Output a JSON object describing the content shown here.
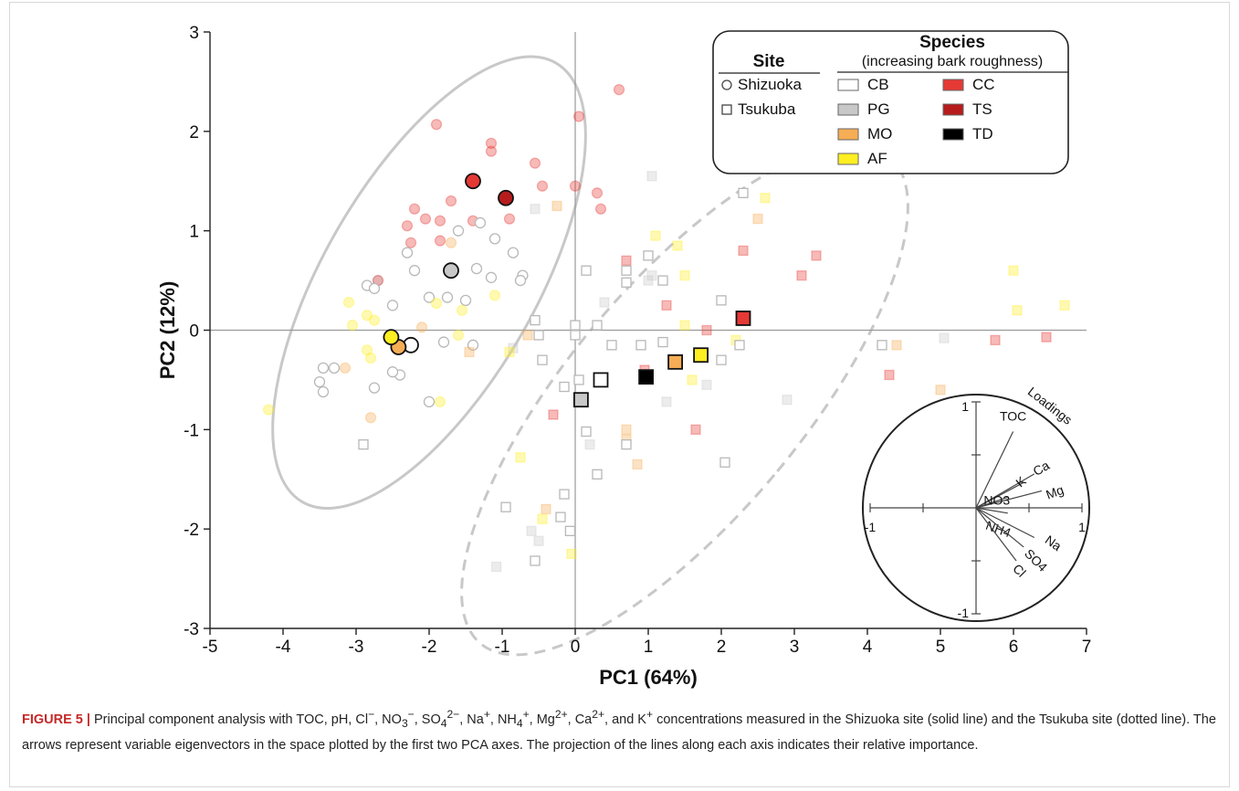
{
  "figure_label": "FIGURE 5 |",
  "caption_html": "Principal component analysis with TOC, pH, Cl<sup>−</sup>, NO<sub>3</sub><sup>−</sup>, SO<sub>4</sub><sup>2−</sup>, Na<sup>+</sup>, NH<sub>4</sub><sup>+</sup>, Mg<sup>2+</sup>, Ca<sup>2+</sup>, and K<sup>+</sup> concentrations measured in the Shizuoka site (solid line) and the Tsukuba site (dotted line). The arrows represent variable eigenvectors in the space plotted by the first two PCA axes. The projection of the lines along each axis indicates their relative importance.",
  "chart_data": {
    "type": "scatter",
    "title": "",
    "xlabel": "PC1 (64%)",
    "ylabel": "PC2 (12%)",
    "xlim": [
      -5,
      7
    ],
    "ylim": [
      -3,
      3
    ],
    "xticks": [
      -5,
      -4,
      -3,
      -2,
      -1,
      0,
      1,
      2,
      3,
      4,
      5,
      6,
      7
    ],
    "yticks": [
      -3,
      -2,
      -1,
      0,
      1,
      2,
      3
    ],
    "zero_lines": true,
    "colors": {
      "CB": "#ffffff",
      "PG": "#c8c8c8",
      "MO": "#f6ad55",
      "AF": "#ffee22",
      "CC": "#e53935",
      "TS": "#b71c1c",
      "TD": "#000000"
    },
    "legend": {
      "site_title": "Site",
      "sites": [
        {
          "label": "Shizuoka",
          "marker": "circle"
        },
        {
          "label": "Tsukuba",
          "marker": "square"
        }
      ],
      "species_title": "Species",
      "species_subtitle": "(increasing bark roughness)",
      "species": [
        {
          "label": "CB",
          "color_key": "CB"
        },
        {
          "label": "PG",
          "color_key": "PG"
        },
        {
          "label": "MO",
          "color_key": "MO"
        },
        {
          "label": "AF",
          "color_key": "AF"
        },
        {
          "label": "CC",
          "color_key": "CC"
        },
        {
          "label": "TS",
          "color_key": "TS"
        },
        {
          "label": "TD",
          "color_key": "TD"
        }
      ]
    },
    "ellipses": [
      {
        "site": "Shizuoka",
        "style": "solid",
        "center": [
          -2.0,
          0.48
        ],
        "rx": 1.45,
        "ry": 2.55,
        "angle_deg": 30
      },
      {
        "site": "Tsukuba",
        "style": "dashed",
        "center": [
          1.5,
          -0.7
        ],
        "rx": 1.6,
        "ry": 3.2,
        "angle_deg": 40
      }
    ],
    "centroids": [
      {
        "site": "Shizuoka",
        "species": "TS",
        "x": -0.95,
        "y": 1.33
      },
      {
        "site": "Shizuoka",
        "species": "CC",
        "x": -1.4,
        "y": 1.5
      },
      {
        "site": "Shizuoka",
        "species": "PG",
        "x": -1.7,
        "y": 0.6
      },
      {
        "site": "Shizuoka",
        "species": "CB",
        "x": -2.25,
        "y": -0.15
      },
      {
        "site": "Shizuoka",
        "species": "MO",
        "x": -2.42,
        "y": -0.17
      },
      {
        "site": "Shizuoka",
        "species": "AF",
        "x": -2.52,
        "y": -0.07
      },
      {
        "site": "Tsukuba",
        "species": "PG",
        "x": 0.08,
        "y": -0.7
      },
      {
        "site": "Tsukuba",
        "species": "CB",
        "x": 0.35,
        "y": -0.5
      },
      {
        "site": "Tsukuba",
        "species": "TD",
        "x": 0.97,
        "y": -0.47
      },
      {
        "site": "Tsukuba",
        "species": "MO",
        "x": 1.37,
        "y": -0.32
      },
      {
        "site": "Tsukuba",
        "species": "AF",
        "x": 1.72,
        "y": -0.25
      },
      {
        "site": "Tsukuba",
        "species": "CC",
        "x": 2.3,
        "y": 0.12
      }
    ],
    "samples": [
      {
        "site": "Shizuoka",
        "species": "CC",
        "x": -1.9,
        "y": 2.07
      },
      {
        "site": "Shizuoka",
        "species": "CC",
        "x": -1.15,
        "y": 1.88
      },
      {
        "site": "Shizuoka",
        "species": "CC",
        "x": -1.15,
        "y": 1.8
      },
      {
        "site": "Shizuoka",
        "species": "CC",
        "x": -0.55,
        "y": 1.68
      },
      {
        "site": "Shizuoka",
        "species": "CC",
        "x": -0.45,
        "y": 1.45
      },
      {
        "site": "Shizuoka",
        "species": "CC",
        "x": 0.05,
        "y": 2.15
      },
      {
        "site": "Shizuoka",
        "species": "CC",
        "x": 0.6,
        "y": 2.42
      },
      {
        "site": "Shizuoka",
        "species": "CC",
        "x": 0.0,
        "y": 1.45
      },
      {
        "site": "Shizuoka",
        "species": "CC",
        "x": 0.3,
        "y": 1.38
      },
      {
        "site": "Shizuoka",
        "species": "CC",
        "x": 0.35,
        "y": 1.22
      },
      {
        "site": "Shizuoka",
        "species": "CC",
        "x": -1.7,
        "y": 1.3
      },
      {
        "site": "Shizuoka",
        "species": "CC",
        "x": -2.2,
        "y": 1.22
      },
      {
        "site": "Shizuoka",
        "species": "CC",
        "x": -2.05,
        "y": 1.12
      },
      {
        "site": "Shizuoka",
        "species": "CC",
        "x": -1.85,
        "y": 1.1
      },
      {
        "site": "Shizuoka",
        "species": "CC",
        "x": -2.3,
        "y": 1.05
      },
      {
        "site": "Shizuoka",
        "species": "CC",
        "x": -1.4,
        "y": 1.1
      },
      {
        "site": "Shizuoka",
        "species": "CC",
        "x": -0.9,
        "y": 1.12
      },
      {
        "site": "Shizuoka",
        "species": "TS",
        "x": -2.7,
        "y": 0.5
      },
      {
        "site": "Shizuoka",
        "species": "CC",
        "x": -1.85,
        "y": 0.9
      },
      {
        "site": "Shizuoka",
        "species": "CC",
        "x": -2.25,
        "y": 0.88
      },
      {
        "site": "Shizuoka",
        "species": "CB",
        "x": -1.3,
        "y": 1.08
      },
      {
        "site": "Shizuoka",
        "species": "CB",
        "x": -1.6,
        "y": 1.0
      },
      {
        "site": "Shizuoka",
        "species": "CB",
        "x": -1.1,
        "y": 0.92
      },
      {
        "site": "Shizuoka",
        "species": "CB",
        "x": -0.85,
        "y": 0.78
      },
      {
        "site": "Shizuoka",
        "species": "CB",
        "x": -2.3,
        "y": 0.78
      },
      {
        "site": "Shizuoka",
        "species": "MO",
        "x": -1.7,
        "y": 0.88
      },
      {
        "site": "Shizuoka",
        "species": "CB",
        "x": -2.85,
        "y": 0.45
      },
      {
        "site": "Shizuoka",
        "species": "CB",
        "x": -2.75,
        "y": 0.42
      },
      {
        "site": "Shizuoka",
        "species": "CB",
        "x": -2.2,
        "y": 0.6
      },
      {
        "site": "Shizuoka",
        "species": "CB",
        "x": -1.35,
        "y": 0.62
      },
      {
        "site": "Shizuoka",
        "species": "CB",
        "x": -1.15,
        "y": 0.53
      },
      {
        "site": "Shizuoka",
        "species": "CB",
        "x": -0.72,
        "y": 0.55
      },
      {
        "site": "Shizuoka",
        "species": "CB",
        "x": -0.75,
        "y": 0.5
      },
      {
        "site": "Shizuoka",
        "species": "CB",
        "x": -2.0,
        "y": 0.33
      },
      {
        "site": "Shizuoka",
        "species": "CB",
        "x": -1.75,
        "y": 0.33
      },
      {
        "site": "Shizuoka",
        "species": "CB",
        "x": -1.5,
        "y": 0.3
      },
      {
        "site": "Shizuoka",
        "species": "CB",
        "x": -2.5,
        "y": 0.25
      },
      {
        "site": "Shizuoka",
        "species": "AF",
        "x": -1.9,
        "y": 0.27
      },
      {
        "site": "Shizuoka",
        "species": "AF",
        "x": -1.1,
        "y": 0.35
      },
      {
        "site": "Shizuoka",
        "species": "AF",
        "x": -3.1,
        "y": 0.28
      },
      {
        "site": "Shizuoka",
        "species": "AF",
        "x": -1.55,
        "y": 0.2
      },
      {
        "site": "Shizuoka",
        "species": "AF",
        "x": -2.85,
        "y": 0.15
      },
      {
        "site": "Shizuoka",
        "species": "AF",
        "x": -2.75,
        "y": 0.1
      },
      {
        "site": "Shizuoka",
        "species": "AF",
        "x": -3.05,
        "y": 0.05
      },
      {
        "site": "Shizuoka",
        "species": "MO",
        "x": -2.1,
        "y": 0.03
      },
      {
        "site": "Shizuoka",
        "species": "AF",
        "x": -1.6,
        "y": -0.05
      },
      {
        "site": "Shizuoka",
        "species": "CB",
        "x": -1.8,
        "y": -0.12
      },
      {
        "site": "Shizuoka",
        "species": "CB",
        "x": -1.4,
        "y": -0.15
      },
      {
        "site": "Shizuoka",
        "species": "AF",
        "x": -2.85,
        "y": -0.2
      },
      {
        "site": "Shizuoka",
        "species": "AF",
        "x": -2.8,
        "y": -0.28
      },
      {
        "site": "Shizuoka",
        "species": "CB",
        "x": -3.3,
        "y": -0.38
      },
      {
        "site": "Shizuoka",
        "species": "CB",
        "x": -3.45,
        "y": -0.38
      },
      {
        "site": "Shizuoka",
        "species": "MO",
        "x": -3.15,
        "y": -0.38
      },
      {
        "site": "Shizuoka",
        "species": "CB",
        "x": -2.4,
        "y": -0.45
      },
      {
        "site": "Shizuoka",
        "species": "CB",
        "x": -2.5,
        "y": -0.42
      },
      {
        "site": "Shizuoka",
        "species": "CB",
        "x": -3.5,
        "y": -0.52
      },
      {
        "site": "Shizuoka",
        "species": "CB",
        "x": -3.45,
        "y": -0.62
      },
      {
        "site": "Shizuoka",
        "species": "CB",
        "x": -2.75,
        "y": -0.58
      },
      {
        "site": "Shizuoka",
        "species": "CB",
        "x": -2.0,
        "y": -0.72
      },
      {
        "site": "Shizuoka",
        "species": "AF",
        "x": -1.85,
        "y": -0.72
      },
      {
        "site": "Shizuoka",
        "species": "MO",
        "x": -2.8,
        "y": -0.88
      },
      {
        "site": "Shizuoka",
        "species": "AF",
        "x": -4.2,
        "y": -0.8
      },
      {
        "site": "Tsukuba",
        "species": "PG",
        "x": 1.05,
        "y": 1.55
      },
      {
        "site": "Tsukuba",
        "species": "CB",
        "x": 2.3,
        "y": 1.38
      },
      {
        "site": "Tsukuba",
        "species": "AF",
        "x": 2.6,
        "y": 1.33
      },
      {
        "site": "Tsukuba",
        "species": "MO",
        "x": -0.25,
        "y": 1.25
      },
      {
        "site": "Tsukuba",
        "species": "PG",
        "x": -0.55,
        "y": 1.22
      },
      {
        "site": "Tsukuba",
        "species": "MO",
        "x": 2.5,
        "y": 1.12
      },
      {
        "site": "Tsukuba",
        "species": "AF",
        "x": 1.1,
        "y": 0.95
      },
      {
        "site": "Tsukuba",
        "species": "AF",
        "x": 1.4,
        "y": 0.85
      },
      {
        "site": "Tsukuba",
        "species": "CC",
        "x": 2.3,
        "y": 0.8
      },
      {
        "site": "Tsukuba",
        "species": "CB",
        "x": 1.0,
        "y": 0.75
      },
      {
        "site": "Tsukuba",
        "species": "CC",
        "x": 3.3,
        "y": 0.75
      },
      {
        "site": "Tsukuba",
        "species": "CC",
        "x": 0.7,
        "y": 0.7
      },
      {
        "site": "Tsukuba",
        "species": "CB",
        "x": 0.7,
        "y": 0.6
      },
      {
        "site": "Tsukuba",
        "species": "CB",
        "x": 0.15,
        "y": 0.6
      },
      {
        "site": "Tsukuba",
        "species": "AF",
        "x": 1.5,
        "y": 0.55
      },
      {
        "site": "Tsukuba",
        "species": "PG",
        "x": 1.05,
        "y": 0.55
      },
      {
        "site": "Tsukuba",
        "species": "PG",
        "x": 1.0,
        "y": 0.5
      },
      {
        "site": "Tsukuba",
        "species": "CC",
        "x": 3.1,
        "y": 0.55
      },
      {
        "site": "Tsukuba",
        "species": "CB",
        "x": 1.2,
        "y": 0.5
      },
      {
        "site": "Tsukuba",
        "species": "CB",
        "x": 0.7,
        "y": 0.48
      },
      {
        "site": "Tsukuba",
        "species": "AF",
        "x": 6.0,
        "y": 0.6
      },
      {
        "site": "Tsukuba",
        "species": "AF",
        "x": 6.7,
        "y": 0.25
      },
      {
        "site": "Tsukuba",
        "species": "AF",
        "x": 6.05,
        "y": 0.2
      },
      {
        "site": "Tsukuba",
        "species": "CB",
        "x": 2.0,
        "y": 0.3
      },
      {
        "site": "Tsukuba",
        "species": "PG",
        "x": 0.4,
        "y": 0.28
      },
      {
        "site": "Tsukuba",
        "species": "CC",
        "x": 1.25,
        "y": 0.25
      },
      {
        "site": "Tsukuba",
        "species": "CB",
        "x": -0.55,
        "y": 0.1
      },
      {
        "site": "Tsukuba",
        "species": "AF",
        "x": 1.5,
        "y": 0.05
      },
      {
        "site": "Tsukuba",
        "species": "CB",
        "x": 0.0,
        "y": 0.05
      },
      {
        "site": "Tsukuba",
        "species": "CB",
        "x": 0.3,
        "y": 0.05
      },
      {
        "site": "Tsukuba",
        "species": "CC",
        "x": 1.8,
        "y": 0.0
      },
      {
        "site": "Tsukuba",
        "species": "CB",
        "x": 0.0,
        "y": -0.05
      },
      {
        "site": "Tsukuba",
        "species": "CB",
        "x": -0.5,
        "y": -0.05
      },
      {
        "site": "Tsukuba",
        "species": "MO",
        "x": -0.65,
        "y": -0.05
      },
      {
        "site": "Tsukuba",
        "species": "AF",
        "x": 2.2,
        "y": -0.1
      },
      {
        "site": "Tsukuba",
        "species": "CB",
        "x": 2.25,
        "y": -0.15
      },
      {
        "site": "Tsukuba",
        "species": "CB",
        "x": 0.9,
        "y": -0.15
      },
      {
        "site": "Tsukuba",
        "species": "CB",
        "x": 0.5,
        "y": -0.15
      },
      {
        "site": "Tsukuba",
        "species": "CB",
        "x": 1.2,
        "y": -0.12
      },
      {
        "site": "Tsukuba",
        "species": "CB",
        "x": 4.2,
        "y": -0.15
      },
      {
        "site": "Tsukuba",
        "species": "MO",
        "x": 4.4,
        "y": -0.15
      },
      {
        "site": "Tsukuba",
        "species": "PG",
        "x": 5.05,
        "y": -0.08
      },
      {
        "site": "Tsukuba",
        "species": "CC",
        "x": 5.75,
        "y": -0.1
      },
      {
        "site": "Tsukuba",
        "species": "CC",
        "x": 6.45,
        "y": -0.07
      },
      {
        "site": "Tsukuba",
        "species": "PG",
        "x": -0.85,
        "y": -0.18
      },
      {
        "site": "Tsukuba",
        "species": "AF",
        "x": -0.9,
        "y": -0.22
      },
      {
        "site": "Tsukuba",
        "species": "MO",
        "x": -1.45,
        "y": -0.22
      },
      {
        "site": "Tsukuba",
        "species": "CB",
        "x": -0.45,
        "y": -0.3
      },
      {
        "site": "Tsukuba",
        "species": "CB",
        "x": 2.0,
        "y": -0.3
      },
      {
        "site": "Tsukuba",
        "species": "CC",
        "x": 0.95,
        "y": -0.4
      },
      {
        "site": "Tsukuba",
        "species": "CB",
        "x": 0.05,
        "y": -0.5
      },
      {
        "site": "Tsukuba",
        "species": "AF",
        "x": 1.6,
        "y": -0.5
      },
      {
        "site": "Tsukuba",
        "species": "PG",
        "x": 1.8,
        "y": -0.55
      },
      {
        "site": "Tsukuba",
        "species": "CB",
        "x": -0.15,
        "y": -0.57
      },
      {
        "site": "Tsukuba",
        "species": "MO",
        "x": 5.0,
        "y": -0.6
      },
      {
        "site": "Tsukuba",
        "species": "PG",
        "x": 2.9,
        "y": -0.7
      },
      {
        "site": "Tsukuba",
        "species": "PG",
        "x": 1.25,
        "y": -0.72
      },
      {
        "site": "Tsukuba",
        "species": "CC",
        "x": -0.3,
        "y": -0.85
      },
      {
        "site": "Tsukuba",
        "species": "CC",
        "x": 4.3,
        "y": -0.45
      },
      {
        "site": "Tsukuba",
        "species": "CB",
        "x": 0.15,
        "y": -1.02
      },
      {
        "site": "Tsukuba",
        "species": "MO",
        "x": 0.7,
        "y": -1.0
      },
      {
        "site": "Tsukuba",
        "species": "CC",
        "x": 1.65,
        "y": -1.0
      },
      {
        "site": "Tsukuba",
        "species": "MO",
        "x": 0.7,
        "y": -1.1
      },
      {
        "site": "Tsukuba",
        "species": "CB",
        "x": 0.7,
        "y": -1.15
      },
      {
        "site": "Tsukuba",
        "species": "PG",
        "x": 0.2,
        "y": -1.15
      },
      {
        "site": "Tsukuba",
        "species": "MO",
        "x": 0.85,
        "y": -1.35
      },
      {
        "site": "Tsukuba",
        "species": "AF",
        "x": -0.75,
        "y": -1.28
      },
      {
        "site": "Tsukuba",
        "species": "CB",
        "x": 2.05,
        "y": -1.33
      },
      {
        "site": "Tsukuba",
        "species": "CB",
        "x": 0.3,
        "y": -1.45
      },
      {
        "site": "Tsukuba",
        "species": "CB",
        "x": -0.15,
        "y": -1.65
      },
      {
        "site": "Tsukuba",
        "species": "CB",
        "x": -0.95,
        "y": -1.78
      },
      {
        "site": "Tsukuba",
        "species": "MO",
        "x": -0.4,
        "y": -1.8
      },
      {
        "site": "Tsukuba",
        "species": "AF",
        "x": -0.45,
        "y": -1.9
      },
      {
        "site": "Tsukuba",
        "species": "CB",
        "x": -0.2,
        "y": -1.88
      },
      {
        "site": "Tsukuba",
        "species": "PG",
        "x": -0.6,
        "y": -2.02
      },
      {
        "site": "Tsukuba",
        "species": "CB",
        "x": -0.07,
        "y": -2.02
      },
      {
        "site": "Tsukuba",
        "species": "PG",
        "x": -0.5,
        "y": -2.12
      },
      {
        "site": "Tsukuba",
        "species": "AF",
        "x": -0.05,
        "y": -2.25
      },
      {
        "site": "Tsukuba",
        "species": "CB",
        "x": -0.55,
        "y": -2.32
      },
      {
        "site": "Tsukuba",
        "species": "PG",
        "x": -1.08,
        "y": -2.38
      },
      {
        "site": "Tsukuba",
        "species": "CB",
        "x": -2.9,
        "y": -1.15
      }
    ],
    "loadings": {
      "title": "Loadings",
      "ticks": [
        "-1",
        "1",
        "-1",
        "1"
      ],
      "vectors": [
        {
          "label": "TOC",
          "x": 0.35,
          "y": 0.72
        },
        {
          "label": "Ca",
          "x": 0.55,
          "y": 0.32
        },
        {
          "label": "K",
          "x": 0.45,
          "y": 0.24
        },
        {
          "label": "Mg",
          "x": 0.62,
          "y": 0.16
        },
        {
          "label": "NO3",
          "x": 0.3,
          "y": 0.1
        },
        {
          "label": "NH4",
          "x": 0.3,
          "y": -0.05
        },
        {
          "label": "Na",
          "x": 0.55,
          "y": -0.28
        },
        {
          "label": "SO4",
          "x": 0.45,
          "y": -0.37
        },
        {
          "label": "Cl",
          "x": 0.38,
          "y": -0.5
        }
      ]
    }
  }
}
